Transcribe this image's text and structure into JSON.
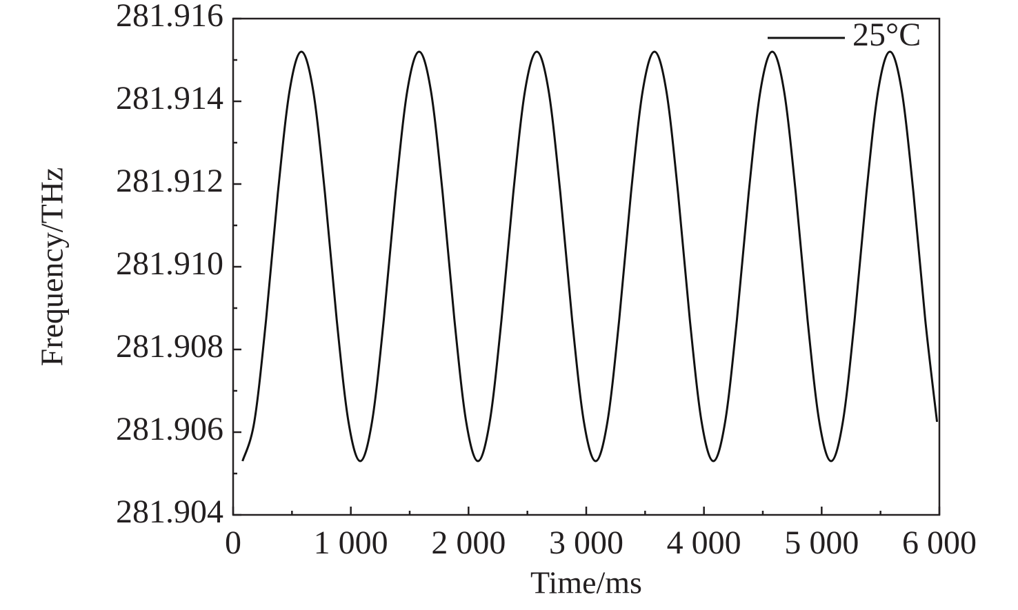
{
  "chart_data": {
    "type": "line",
    "x_label": "Time/ms",
    "y_label": "Frequency/THz",
    "x": [
      80,
      180,
      280,
      380,
      480,
      580,
      680,
      780,
      880,
      980,
      1080,
      1180,
      1280,
      1380,
      1480,
      1580,
      1680,
      1780,
      1880,
      1980,
      2080,
      2180,
      2280,
      2380,
      2480,
      2580,
      2680,
      2780,
      2880,
      2980,
      3080,
      3180,
      3280,
      3380,
      3480,
      3580,
      3680,
      3780,
      3880,
      3980,
      4080,
      4180,
      4280,
      4380,
      4480,
      4580,
      4680,
      4780,
      4880,
      4980,
      5080,
      5180,
      5280,
      5380,
      5480,
      5580,
      5680,
      5780,
      5880,
      5980
    ],
    "series": [
      {
        "name": "25°C",
        "color": "#111111",
        "values": [
          281.9053,
          281.90625,
          281.90872,
          281.91178,
          281.91426,
          281.9152,
          281.91426,
          281.91178,
          281.90872,
          281.90625,
          281.9053,
          281.90625,
          281.90872,
          281.91178,
          281.91426,
          281.9152,
          281.91426,
          281.91178,
          281.90872,
          281.90625,
          281.9053,
          281.90625,
          281.90872,
          281.91178,
          281.91426,
          281.9152,
          281.91426,
          281.91178,
          281.90872,
          281.90625,
          281.9053,
          281.90625,
          281.90872,
          281.91178,
          281.91426,
          281.9152,
          281.91426,
          281.91178,
          281.90872,
          281.90625,
          281.9053,
          281.90625,
          281.90872,
          281.91178,
          281.91426,
          281.9152,
          281.91426,
          281.91178,
          281.90872,
          281.90625,
          281.9053,
          281.90625,
          281.90872,
          281.91178,
          281.91426,
          281.9152,
          281.91426,
          281.91178,
          281.90872,
          281.90625
        ]
      }
    ],
    "xlim": [
      0,
      6000
    ],
    "xticks": [
      0,
      {
        "value": 1000,
        "label": "1 000"
      },
      {
        "value": 2000,
        "label": "2 000"
      },
      {
        "value": 3000,
        "label": "3 000"
      },
      {
        "value": 4000,
        "label": "4 000"
      },
      {
        "value": 5000,
        "label": "5 000"
      },
      {
        "value": 6000,
        "label": "6 000"
      }
    ],
    "ylim": [
      281.904,
      281.916
    ],
    "yticks": [
      281.904,
      281.906,
      281.908,
      {
        "value": 281.91,
        "label": "281.910"
      },
      281.912,
      281.914,
      281.916
    ],
    "legend": "top-right",
    "grid": false
  }
}
